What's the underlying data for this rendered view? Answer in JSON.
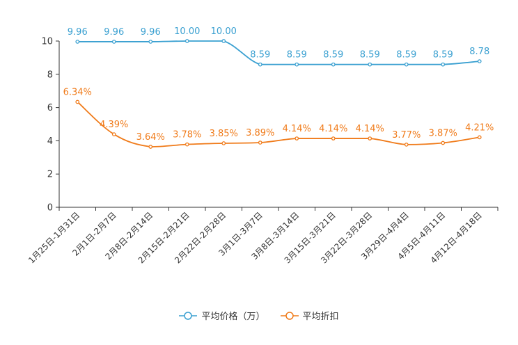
{
  "chart_data": {
    "type": "line",
    "title": "",
    "xlabel": "",
    "ylabel": "",
    "ylim": [
      0,
      10
    ],
    "yticks": [
      0,
      2,
      4,
      6,
      8,
      10
    ],
    "grid": false,
    "legend_position": "bottom-center",
    "categories": [
      "1月25日-1月31日",
      "2月1日-2月7日",
      "2月8日-2月14日",
      "2月15日-2月21日",
      "2月22日-2月28日",
      "3月1日-3月7日",
      "3月8日-3月14日",
      "3月15日-3月21日",
      "3月22日-3月28日",
      "3月29日-4月4日",
      "4月5日-4月11日",
      "4月12日-4月18日"
    ],
    "series": [
      {
        "name": "平均价格（万）",
        "color": "#3aa0d1",
        "values": [
          9.96,
          9.96,
          9.96,
          10.0,
          10.0,
          8.59,
          8.59,
          8.59,
          8.59,
          8.59,
          8.59,
          8.78
        ],
        "labels": [
          "9.96",
          "9.96",
          "9.96",
          "10.00",
          "10.00",
          "8.59",
          "8.59",
          "8.59",
          "8.59",
          "8.59",
          "8.59",
          "8.78"
        ]
      },
      {
        "name": "平均折扣",
        "color": "#f07b1a",
        "values": [
          6.34,
          4.39,
          3.64,
          3.78,
          3.85,
          3.89,
          4.14,
          4.14,
          4.14,
          3.77,
          3.87,
          4.21
        ],
        "labels": [
          "6.34%",
          "4.39%",
          "3.64%",
          "3.78%",
          "3.85%",
          "3.89%",
          "4.14%",
          "4.14%",
          "4.14%",
          "3.77%",
          "3.87%",
          "4.21%"
        ]
      }
    ]
  }
}
